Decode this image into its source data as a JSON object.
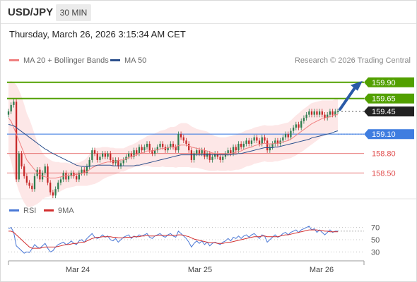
{
  "header": {
    "symbol": "USD/JPY",
    "timeframe": "30 MIN"
  },
  "datetime": "Thursday, March 26, 2026 3:15:34 AM CET",
  "legend": [
    {
      "label": "MA 20 + Bollinger Bands",
      "color": "#f08080"
    },
    {
      "label": "MA 50",
      "color": "#2b4f8c"
    }
  ],
  "copyright": "Research © 2026 Trading Central",
  "colors": {
    "up": "#2e7d4f",
    "down": "#c62828",
    "target": "#52a000",
    "pivot": "#3f7de0",
    "support": "#e04a4a",
    "current": "#222222",
    "arrow": "#2a5aa8"
  },
  "chart_data": [
    {
      "type": "candlestick",
      "ylim": [
        158.1,
        160.05
      ],
      "x_ticks": [
        "Mar 24",
        "Mar 25",
        "Mar 26"
      ],
      "levels": [
        {
          "value": 159.9,
          "label": "159.90",
          "kind": "target"
        },
        {
          "value": 159.65,
          "label": "159.65",
          "kind": "target"
        },
        {
          "value": 159.45,
          "label": "159.45",
          "kind": "current"
        },
        {
          "value": 159.1,
          "label": "159.10",
          "kind": "pivot"
        },
        {
          "value": 158.8,
          "label": "158.80",
          "kind": "support"
        },
        {
          "value": 158.5,
          "label": "158.50",
          "kind": "support"
        }
      ],
      "close": [
        159.45,
        159.55,
        159.6,
        158.4,
        158.8,
        158.6,
        158.45,
        158.35,
        158.3,
        158.25,
        158.45,
        158.55,
        158.4,
        158.5,
        158.6,
        158.35,
        158.2,
        158.15,
        158.25,
        158.35,
        158.4,
        158.5,
        158.4,
        158.45,
        158.5,
        158.45,
        158.4,
        158.5,
        158.55,
        158.5,
        158.6,
        158.7,
        158.85,
        158.8,
        158.7,
        158.75,
        158.8,
        158.75,
        158.8,
        158.7,
        158.65,
        158.7,
        158.6,
        158.65,
        158.7,
        158.75,
        158.8,
        158.75,
        158.85,
        158.8,
        158.9,
        158.85,
        158.9,
        158.95,
        158.85,
        158.8,
        158.85,
        158.9,
        158.95,
        158.9,
        158.85,
        158.9,
        158.95,
        158.9,
        158.85,
        159.1,
        159.05,
        159.0,
        158.95,
        158.85,
        158.7,
        158.8,
        158.85,
        158.8,
        158.85,
        158.75,
        158.8,
        158.7,
        158.75,
        158.8,
        158.75,
        158.7,
        158.75,
        158.8,
        158.85,
        158.8,
        158.9,
        158.85,
        158.95,
        158.9,
        158.95,
        159.0,
        158.95,
        159.0,
        159.05,
        159.0,
        158.95,
        159.05,
        159.0,
        158.85,
        158.9,
        158.95,
        159.0,
        158.95,
        159.0,
        159.05,
        159.1,
        159.05,
        159.15,
        159.2,
        159.25,
        159.2,
        159.3,
        159.35,
        159.4,
        159.45,
        159.4,
        159.45,
        159.4,
        159.45,
        159.4,
        159.35,
        159.4,
        159.45,
        159.4,
        159.45,
        159.45
      ],
      "ma20": [
        159.35,
        159.3,
        159.2,
        159.1,
        159.0,
        158.9,
        158.8,
        158.7,
        158.65,
        158.6,
        158.55,
        158.5,
        158.47,
        158.45,
        158.44,
        158.43,
        158.42,
        158.42,
        158.42,
        158.43,
        158.44,
        158.45,
        158.46,
        158.46,
        158.46,
        158.47,
        158.48,
        158.48,
        158.49,
        158.5,
        158.52,
        158.55,
        158.58,
        158.6,
        158.62,
        158.63,
        158.65,
        158.66,
        158.67,
        158.67,
        158.68,
        158.68,
        158.69,
        158.7,
        158.7,
        158.72,
        158.74,
        158.75,
        158.77,
        158.78,
        158.8,
        158.81,
        158.82,
        158.84,
        158.84,
        158.84,
        158.85,
        158.86,
        158.87,
        158.88,
        158.88,
        158.89,
        158.9,
        158.9,
        158.9,
        158.92,
        158.93,
        158.93,
        158.93,
        158.92,
        158.9,
        158.89,
        158.88,
        158.87,
        158.86,
        158.85,
        158.84,
        158.82,
        158.81,
        158.8,
        158.8,
        158.79,
        158.79,
        158.79,
        158.8,
        158.8,
        158.81,
        158.82,
        158.83,
        158.84,
        158.86,
        158.88,
        158.89,
        158.9,
        158.92,
        158.93,
        158.94,
        158.95,
        158.96,
        158.95,
        158.95,
        158.95,
        158.96,
        158.96,
        158.97,
        158.98,
        158.99,
        159.0,
        159.02,
        159.05,
        159.08,
        159.11,
        159.14,
        159.17,
        159.2,
        159.23,
        159.26,
        159.28,
        159.3,
        159.32,
        159.34,
        159.35,
        159.36,
        159.37,
        159.38,
        159.4,
        159.4
      ],
      "ma50": [
        159.25,
        159.24,
        159.23,
        159.2,
        159.17,
        159.14,
        159.11,
        159.08,
        159.05,
        159.02,
        158.99,
        158.96,
        158.93,
        158.9,
        158.87,
        158.85,
        158.82,
        158.8,
        158.78,
        158.76,
        158.74,
        158.72,
        158.7,
        158.68,
        158.66,
        158.64,
        158.62,
        158.61,
        158.6,
        158.6,
        158.6,
        158.6,
        158.61,
        158.61,
        158.62,
        158.62,
        158.62,
        158.62,
        158.62,
        158.62,
        158.61,
        158.61,
        158.61,
        158.61,
        158.61,
        158.61,
        158.61,
        158.61,
        158.61,
        158.62,
        158.62,
        158.63,
        158.64,
        158.65,
        158.66,
        158.67,
        158.68,
        158.69,
        158.7,
        158.71,
        158.72,
        158.73,
        158.74,
        158.75,
        158.76,
        158.77,
        158.78,
        158.78,
        158.78,
        158.78,
        158.78,
        158.78,
        158.78,
        158.78,
        158.78,
        158.78,
        158.78,
        158.78,
        158.78,
        158.78,
        158.78,
        158.78,
        158.78,
        158.78,
        158.78,
        158.78,
        158.79,
        158.79,
        158.8,
        158.8,
        158.81,
        158.82,
        158.83,
        158.84,
        158.85,
        158.86,
        158.87,
        158.88,
        158.89,
        158.89,
        158.89,
        158.89,
        158.9,
        158.9,
        158.91,
        158.92,
        158.93,
        158.94,
        158.95,
        158.96,
        158.97,
        158.98,
        158.99,
        159.0,
        159.01,
        159.02,
        159.04,
        159.05,
        159.06,
        159.07,
        159.08,
        159.09,
        159.1,
        159.11,
        159.12,
        159.14,
        159.15
      ],
      "bb_half_width": [
        0.55,
        0.62,
        0.7,
        0.76,
        0.78,
        0.78,
        0.76,
        0.72,
        0.68,
        0.62,
        0.55,
        0.48,
        0.42,
        0.36,
        0.32,
        0.3,
        0.28,
        0.26,
        0.25,
        0.24,
        0.22,
        0.21,
        0.2,
        0.19,
        0.18,
        0.18,
        0.18,
        0.18,
        0.19,
        0.2,
        0.22,
        0.24,
        0.26,
        0.27,
        0.27,
        0.26,
        0.25,
        0.24,
        0.23,
        0.22,
        0.21,
        0.2,
        0.19,
        0.18,
        0.18,
        0.18,
        0.18,
        0.18,
        0.18,
        0.19,
        0.2,
        0.21,
        0.22,
        0.23,
        0.24,
        0.25,
        0.26,
        0.27,
        0.28,
        0.28,
        0.29,
        0.3,
        0.31,
        0.31,
        0.32,
        0.33,
        0.34,
        0.34,
        0.34,
        0.33,
        0.32,
        0.31,
        0.3,
        0.3,
        0.3,
        0.3,
        0.3,
        0.29,
        0.28,
        0.27,
        0.26,
        0.26,
        0.26,
        0.26,
        0.26,
        0.27,
        0.27,
        0.27,
        0.28,
        0.28,
        0.28,
        0.28,
        0.28,
        0.28,
        0.28,
        0.28,
        0.28,
        0.28,
        0.28,
        0.28,
        0.28,
        0.28,
        0.28,
        0.28,
        0.28,
        0.28,
        0.28,
        0.28,
        0.29,
        0.3,
        0.31,
        0.31,
        0.32,
        0.32,
        0.32,
        0.32,
        0.32,
        0.31,
        0.3,
        0.29,
        0.28,
        0.27,
        0.26,
        0.25,
        0.24,
        0.24,
        0.24
      ]
    },
    {
      "type": "line",
      "ylim": [
        20,
        80
      ],
      "y_ticks": [
        70,
        50,
        30
      ],
      "series": [
        {
          "name": "RSI",
          "color": "#4a78d6",
          "values": [
            68,
            70,
            62,
            40,
            36,
            32,
            28,
            30,
            29,
            35,
            42,
            38,
            36,
            40,
            44,
            36,
            30,
            32,
            38,
            42,
            44,
            46,
            42,
            44,
            48,
            44,
            42,
            48,
            50,
            46,
            52,
            56,
            60,
            54,
            52,
            54,
            58,
            54,
            56,
            50,
            48,
            52,
            46,
            50,
            54,
            56,
            58,
            52,
            56,
            54,
            58,
            56,
            58,
            60,
            54,
            52,
            56,
            58,
            60,
            56,
            54,
            58,
            60,
            56,
            54,
            64,
            60,
            56,
            52,
            46,
            38,
            44,
            48,
            44,
            48,
            42,
            46,
            40,
            44,
            46,
            44,
            42,
            46,
            48,
            52,
            48,
            54,
            52,
            56,
            52,
            56,
            58,
            54,
            58,
            60,
            56,
            52,
            58,
            56,
            46,
            50,
            54,
            58,
            54,
            56,
            60,
            62,
            58,
            62,
            64,
            66,
            62,
            66,
            68,
            70,
            72,
            66,
            68,
            62,
            66,
            62,
            58,
            62,
            66,
            62,
            64,
            64
          ]
        },
        {
          "name": "9MA",
          "color": "#d32f2f",
          "values": [
            64,
            64,
            62,
            58,
            54,
            50,
            46,
            42,
            38,
            36,
            36,
            36,
            36,
            37,
            38,
            38,
            38,
            38,
            38,
            39,
            40,
            41,
            42,
            42,
            43,
            44,
            44,
            45,
            46,
            46,
            48,
            50,
            52,
            53,
            54,
            54,
            55,
            55,
            55,
            55,
            54,
            54,
            53,
            53,
            53,
            54,
            54,
            54,
            55,
            55,
            55,
            56,
            56,
            57,
            56,
            56,
            56,
            57,
            57,
            57,
            57,
            57,
            57,
            57,
            57,
            58,
            58,
            57,
            56,
            55,
            53,
            51,
            50,
            49,
            48,
            47,
            46,
            45,
            45,
            45,
            44,
            44,
            44,
            45,
            46,
            46,
            47,
            48,
            49,
            50,
            51,
            52,
            53,
            54,
            55,
            55,
            55,
            56,
            56,
            55,
            55,
            55,
            55,
            55,
            56,
            57,
            58,
            58,
            59,
            60,
            61,
            62,
            63,
            64,
            65,
            66,
            66,
            66,
            66,
            65,
            65,
            64,
            64,
            63,
            63,
            63,
            63
          ]
        }
      ]
    }
  ]
}
